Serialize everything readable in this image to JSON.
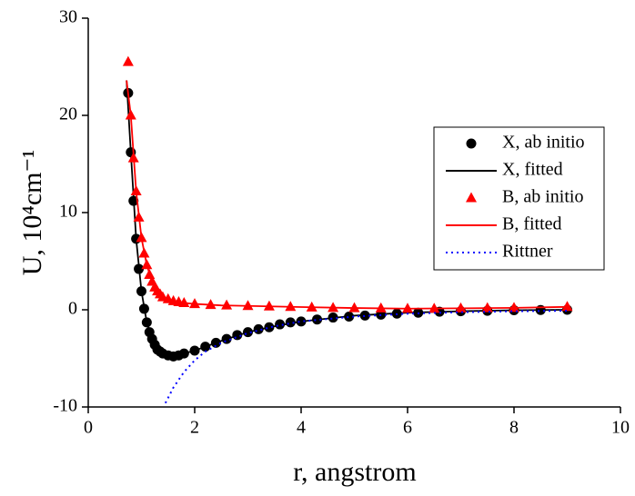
{
  "chart_data": {
    "type": "line",
    "xlabel": "r, angstrom",
    "ylabel": "U, 10⁴cm⁻¹",
    "xlim": [
      0,
      10
    ],
    "xticks": [
      0,
      2,
      4,
      6,
      8,
      10
    ],
    "ylim": [
      -10,
      30
    ],
    "yticks": [
      -10,
      0,
      10,
      20,
      30
    ],
    "legend": "right",
    "series": [
      {
        "name": "X, ab initio",
        "color": "#000000",
        "marker": "circle",
        "line": "none",
        "x": [
          0.75,
          0.8,
          0.85,
          0.9,
          0.95,
          1.0,
          1.05,
          1.1,
          1.15,
          1.2,
          1.25,
          1.3,
          1.35,
          1.4,
          1.5,
          1.6,
          1.7,
          1.8,
          2.0,
          2.2,
          2.4,
          2.6,
          2.8,
          3.0,
          3.2,
          3.4,
          3.6,
          3.8,
          4.0,
          4.3,
          4.6,
          4.9,
          5.2,
          5.5,
          5.8,
          6.2,
          6.6,
          7.0,
          7.5,
          8.0,
          8.5,
          9.0
        ],
        "values": [
          22.3,
          16.2,
          11.2,
          7.3,
          4.2,
          1.9,
          0.1,
          -1.3,
          -2.3,
          -3.0,
          -3.6,
          -4.1,
          -4.3,
          -4.5,
          -4.7,
          -4.8,
          -4.7,
          -4.5,
          -4.2,
          -3.8,
          -3.4,
          -3.0,
          -2.6,
          -2.3,
          -2.0,
          -1.8,
          -1.5,
          -1.3,
          -1.2,
          -1.0,
          -0.8,
          -0.7,
          -0.6,
          -0.5,
          -0.4,
          -0.3,
          -0.2,
          -0.15,
          -0.1,
          -0.05,
          -0.02,
          0
        ]
      },
      {
        "name": "X, fitted",
        "color": "#000000",
        "marker": "none",
        "line": "solid",
        "x": [
          0.72,
          0.8,
          0.9,
          1.0,
          1.1,
          1.2,
          1.3,
          1.4,
          1.6,
          1.8,
          2.0,
          2.5,
          3.0,
          3.5,
          4.0,
          5.0,
          6.0,
          7.0,
          8.0,
          9.0
        ],
        "values": [
          23.6,
          16.2,
          7.3,
          1.9,
          -1.3,
          -3.0,
          -4.1,
          -4.5,
          -4.8,
          -4.5,
          -4.2,
          -3.2,
          -2.3,
          -1.7,
          -1.2,
          -0.6,
          -0.3,
          -0.15,
          -0.05,
          0
        ]
      },
      {
        "name": "B, ab initio",
        "color": "#ff0000",
        "marker": "triangle",
        "line": "none",
        "x": [
          0.75,
          0.8,
          0.85,
          0.9,
          0.95,
          1.0,
          1.05,
          1.1,
          1.15,
          1.2,
          1.25,
          1.3,
          1.35,
          1.4,
          1.5,
          1.6,
          1.7,
          1.8,
          2.0,
          2.3,
          2.6,
          3.0,
          3.4,
          3.8,
          4.2,
          4.6,
          5.0,
          5.5,
          6.0,
          6.5,
          7.0,
          7.5,
          8.0,
          9.0
        ],
        "values": [
          25.5,
          20,
          15.6,
          12.2,
          9.5,
          7.4,
          5.8,
          4.6,
          3.6,
          2.9,
          2.3,
          1.9,
          1.6,
          1.3,
          1.1,
          0.9,
          0.8,
          0.7,
          0.6,
          0.5,
          0.45,
          0.4,
          0.35,
          0.3,
          0.25,
          0.2,
          0.18,
          0.15,
          0.12,
          0.12,
          0.15,
          0.18,
          0.2,
          0.3
        ]
      },
      {
        "name": "B, fitted",
        "color": "#ff0000",
        "marker": "none",
        "line": "solid",
        "x": [
          0.72,
          0.8,
          0.9,
          1.0,
          1.1,
          1.2,
          1.3,
          1.4,
          1.6,
          1.8,
          2.0,
          2.5,
          3.0,
          4.0,
          5.0,
          6.0,
          7.0,
          8.0,
          9.0
        ],
        "values": [
          23.6,
          20,
          12.2,
          7.4,
          4.6,
          2.9,
          1.9,
          1.3,
          0.9,
          0.7,
          0.6,
          0.45,
          0.4,
          0.28,
          0.18,
          0.12,
          0.15,
          0.2,
          0.3
        ]
      },
      {
        "name": "Rittner",
        "color": "#0000ff",
        "marker": "none",
        "line": "dotted",
        "x": [
          1.45,
          1.6,
          1.8,
          2.0,
          2.2,
          2.5,
          3.0,
          3.5,
          4.0,
          5.0,
          6.0,
          7.0,
          8.0,
          9.0
        ],
        "values": [
          -9.6,
          -8.0,
          -6.4,
          -5.2,
          -4.3,
          -3.4,
          -2.4,
          -1.7,
          -1.2,
          -0.7,
          -0.4,
          -0.25,
          -0.15,
          -0.1
        ]
      }
    ]
  }
}
